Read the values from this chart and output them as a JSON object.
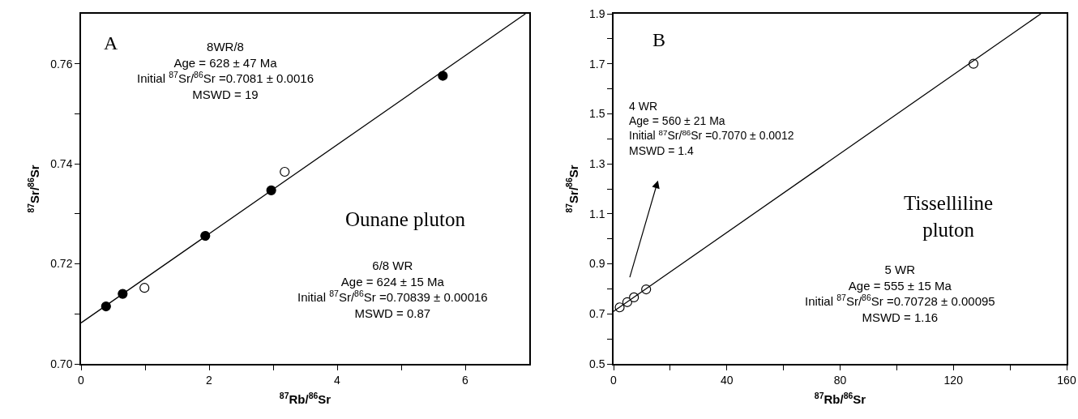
{
  "chart_data": [
    {
      "type": "scatter",
      "xlabel": "$^{87}$Rb/$^{86}$Sr",
      "ylabel": "$^{87}$Sr/$^{86}$Sr",
      "xlim": [
        0,
        7
      ],
      "ylim": [
        0.7,
        0.77
      ],
      "xticks": [
        0,
        {
          "value": 1,
          "label": null
        },
        2,
        {
          "value": 3,
          "label": null
        },
        4,
        {
          "value": 5,
          "label": null
        },
        6
      ],
      "yticks": [
        {
          "value": 0.7,
          "label": "0.70"
        },
        {
          "value": 0.71,
          "label": null
        },
        {
          "value": 0.72,
          "label": "0.72"
        },
        {
          "value": 0.73,
          "label": null
        },
        {
          "value": 0.74,
          "label": "0.74"
        },
        {
          "value": 0.75,
          "label": null
        },
        {
          "value": 0.76,
          "label": "0.76"
        }
      ],
      "marker": "circle",
      "series": [
        {
          "color": "#000000",
          "x": [
            0.39,
            0.65,
            1.94,
            2.97,
            5.65
          ],
          "values": [
            0.7115,
            0.714,
            0.7256,
            0.7347,
            0.7576
          ]
        },
        {
          "color": "#ffffff",
          "x": [
            0.99,
            3.18
          ],
          "values": [
            0.7152,
            0.7384
          ]
        },
        {
          "type": "line",
          "color": "#000000",
          "marker": "none",
          "x": [
            0,
            6.94
          ],
          "values": [
            0.7082,
            0.77
          ]
        }
      ],
      "annotations": [
        "A",
        "8WR/8\nAge = 628 ± 47 Ma\nInitial $^{87}$Sr/$^{86}$Sr =0.7081 ± 0.0016\nMSWD = 19",
        "Ounane pluton",
        "6/8 WR\nAge = 624 ± 15 Ma\nInitial $^{87}$Sr/$^{86}$Sr =0.70839 ± 0.00016\nMSWD = 0.87"
      ]
    },
    {
      "type": "scatter",
      "xlabel": "$^{87}$Rb/$^{86}$Sr",
      "ylabel": "$^{87}$Sr/$^{86}$Sr",
      "xlim": [
        0,
        160
      ],
      "ylim": [
        0.5,
        1.9
      ],
      "xticks": [
        0,
        {
          "value": 20,
          "label": null
        },
        40,
        {
          "value": 60,
          "label": null
        },
        80,
        {
          "value": 100,
          "label": null
        },
        120,
        {
          "value": 140,
          "label": null
        },
        160
      ],
      "yticks": [
        0.5,
        {
          "value": 0.6,
          "label": null
        },
        0.7,
        {
          "value": 0.8,
          "label": null
        },
        0.9,
        {
          "value": 1.0,
          "label": null
        },
        1.1,
        {
          "value": 1.2,
          "label": null
        },
        1.3,
        {
          "value": 1.4,
          "label": null
        },
        1.5,
        {
          "value": 1.6,
          "label": null
        },
        1.7,
        {
          "value": 1.8,
          "label": null
        },
        1.9
      ],
      "marker": "circle",
      "series": [
        {
          "color": "#ffffff",
          "x": [
            2.15,
            4.84,
            7.2,
            11.5,
            127.1
          ],
          "values": [
            0.726,
            0.747,
            0.766,
            0.798,
            1.7
          ]
        },
        {
          "type": "line",
          "color": "#000000",
          "marker": "none",
          "x": [
            0,
            150.9
          ],
          "values": [
            0.71,
            1.9
          ]
        }
      ],
      "annotations": [
        "B",
        "4 WR\nAge = 560 ± 21 Ma\nInitial $^{87}$Sr/$^{86}$Sr =0.7070 ± 0.0012\nMSWD = 1.4",
        "Tisselliline\npluton",
        "5 WR\nAge = 555 ± 15 Ma\nInitial $^{87}$Sr/$^{86}$Sr =0.70728 ± 0.00095\nMSWD = 1.16"
      ]
    }
  ]
}
